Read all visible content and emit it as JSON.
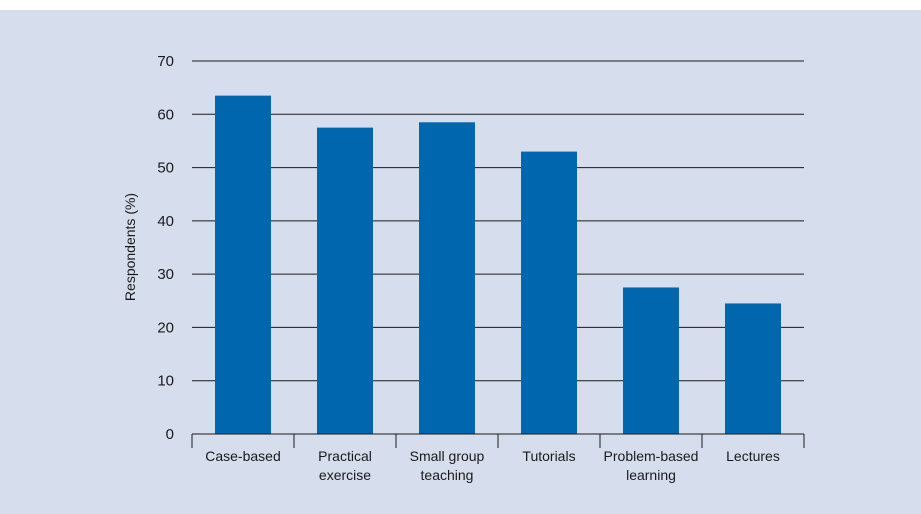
{
  "chart_data": {
    "type": "bar",
    "title": "",
    "xlabel": "",
    "ylabel": "Respondents (%)",
    "ylim": [
      0,
      70
    ],
    "yticks": [
      0,
      10,
      20,
      30,
      40,
      50,
      60,
      70
    ],
    "grid": true,
    "categories": [
      [
        "Case-based"
      ],
      [
        "Practical",
        "exercise"
      ],
      [
        "Small group",
        "teaching"
      ],
      [
        "Tutorials"
      ],
      [
        "Problem-based",
        "learning"
      ],
      [
        "Lectures"
      ]
    ],
    "values": [
      63.5,
      57.5,
      58.5,
      53,
      27.5,
      24.5
    ],
    "colors": {
      "bar": "#0066ad",
      "gridline": "#1a1a1a",
      "background": "#d6deed"
    }
  }
}
